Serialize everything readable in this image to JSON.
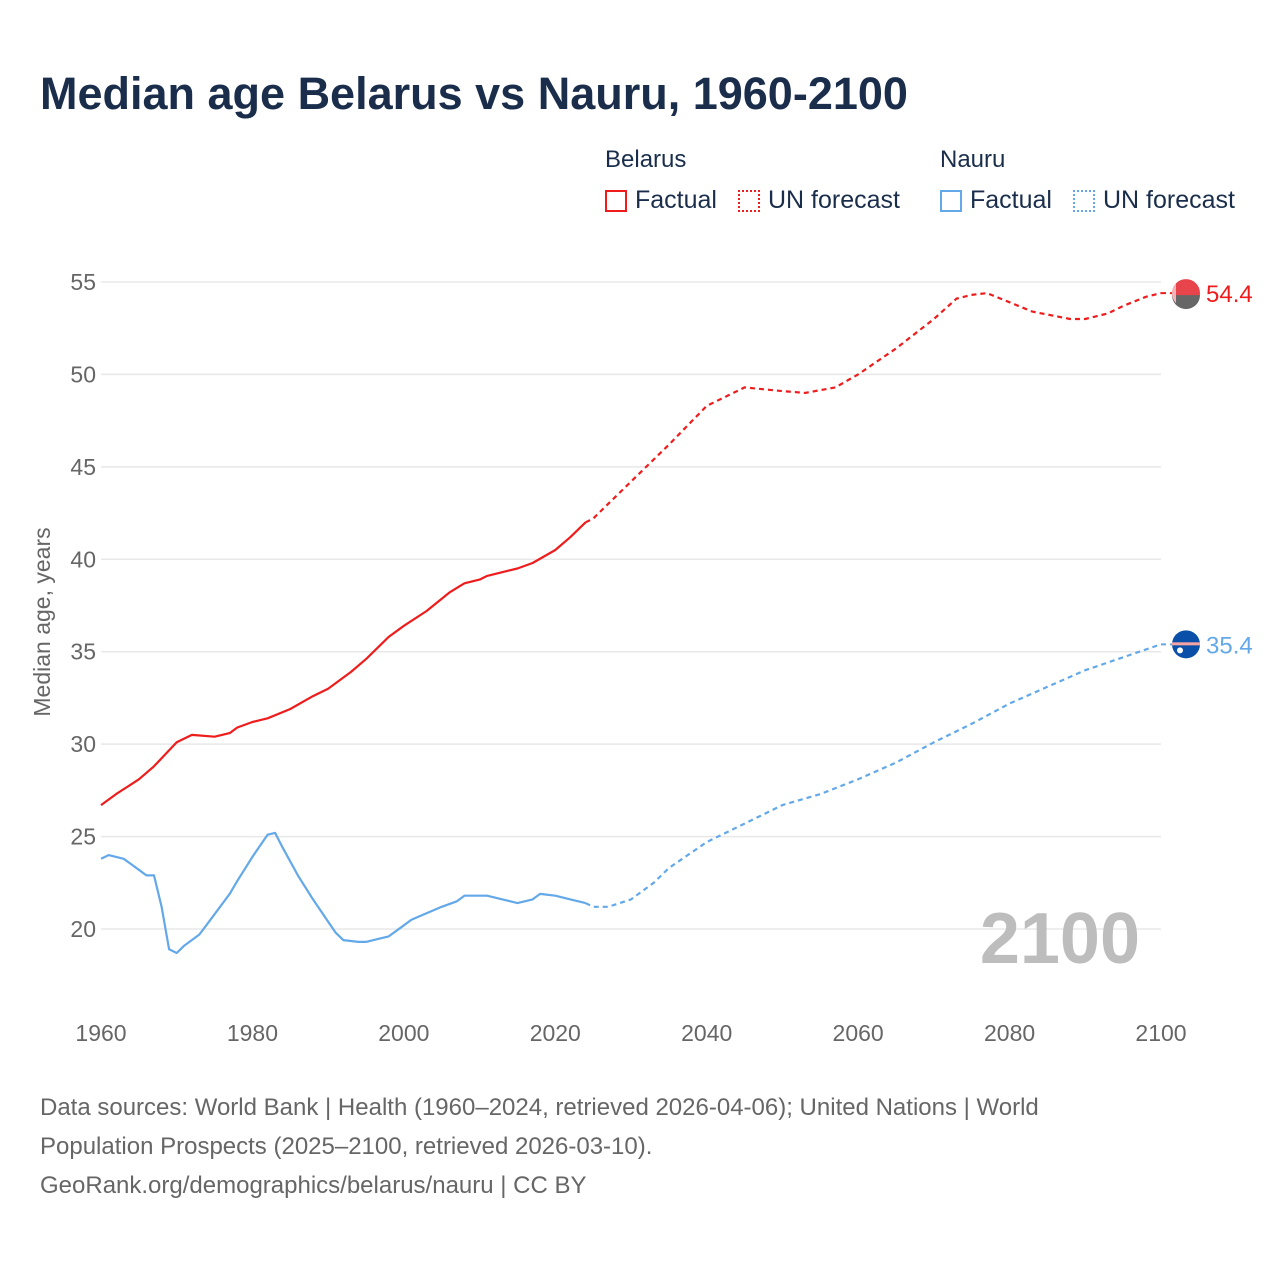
{
  "title": "Median age Belarus vs Nauru, 1960-2100",
  "legend": {
    "groups": [
      {
        "name": "Belarus",
        "factual": "Factual",
        "forecast": "UN forecast",
        "color": "#ee1c1c"
      },
      {
        "name": "Nauru",
        "factual": "Factual",
        "forecast": "UN forecast",
        "color": "#63a8e8"
      }
    ]
  },
  "year_watermark": "2100",
  "source": {
    "line1": "Data sources: World Bank | Health (1960–2024, retrieved 2026-04-06); United Nations | World",
    "line2": "Population Prospects (2025–2100, retrieved 2026-03-10).",
    "line3": "GeoRank.org/demographics/belarus/nauru | CC BY"
  },
  "chart_data": {
    "type": "line",
    "title": "Median age Belarus vs Nauru, 1960-2100",
    "ylabel": "Median age, years",
    "xlabel": "",
    "xlim": [
      1960,
      2100
    ],
    "ylim": [
      20,
      55
    ],
    "xticks": [
      1960,
      1980,
      2000,
      2020,
      2040,
      2060,
      2080,
      2100
    ],
    "yticks": [
      20,
      25,
      30,
      35,
      40,
      45,
      50,
      55
    ],
    "grid": true,
    "legend_position": "top-right",
    "series": [
      {
        "name": "Belarus",
        "kind": "Factual",
        "color": "#ee1c1c",
        "x": [
          1960,
          1962,
          1965,
          1967,
          1970,
          1972,
          1975,
          1977,
          1978,
          1980,
          1982,
          1985,
          1988,
          1990,
          1993,
          1995,
          1998,
          2000,
          2003,
          2006,
          2008,
          2010,
          2011,
          2015,
          2017,
          2020,
          2022,
          2024
        ],
        "y": [
          26.7,
          27.3,
          28.1,
          28.8,
          30.1,
          30.5,
          30.4,
          30.6,
          30.9,
          31.2,
          31.4,
          31.9,
          32.6,
          33.0,
          33.9,
          34.6,
          35.8,
          36.4,
          37.2,
          38.2,
          38.7,
          38.9,
          39.1,
          39.5,
          39.8,
          40.5,
          41.2,
          42.0
        ]
      },
      {
        "name": "Belarus",
        "kind": "UN forecast",
        "color": "#ee1c1c",
        "x": [
          2024,
          2025,
          2030,
          2035,
          2040,
          2045,
          2050,
          2053,
          2057,
          2060,
          2065,
          2070,
          2073,
          2075,
          2077,
          2080,
          2083,
          2088,
          2090,
          2093,
          2095,
          2098,
          2100
        ],
        "y": [
          42.0,
          42.2,
          44.2,
          46.2,
          48.3,
          49.3,
          49.1,
          49.0,
          49.3,
          50.0,
          51.4,
          53.0,
          54.1,
          54.3,
          54.4,
          53.9,
          53.4,
          53.0,
          53.0,
          53.3,
          53.7,
          54.2,
          54.4
        ]
      },
      {
        "name": "Nauru",
        "kind": "Factual",
        "color": "#63a8e8",
        "x": [
          1960,
          1961,
          1963,
          1965,
          1966,
          1967,
          1968,
          1969,
          1970,
          1971,
          1973,
          1975,
          1977,
          1978,
          1980,
          1981,
          1982,
          1983,
          1984,
          1986,
          1988,
          1990,
          1991,
          1992,
          1994,
          1995,
          1998,
          2000,
          2001,
          2005,
          2007,
          2008,
          2011,
          2015,
          2017,
          2018,
          2020,
          2022,
          2024
        ],
        "y": [
          23.8,
          24.0,
          23.8,
          23.2,
          22.9,
          22.9,
          21.2,
          18.9,
          18.7,
          19.1,
          19.7,
          20.8,
          21.9,
          22.6,
          23.9,
          24.5,
          25.1,
          25.2,
          24.4,
          22.9,
          21.6,
          20.4,
          19.8,
          19.4,
          19.3,
          19.3,
          19.6,
          20.2,
          20.5,
          21.2,
          21.5,
          21.8,
          21.8,
          21.4,
          21.6,
          21.9,
          21.8,
          21.6,
          21.4
        ]
      },
      {
        "name": "Nauru",
        "kind": "UN forecast",
        "color": "#63a8e8",
        "x": [
          2024,
          2025,
          2027,
          2030,
          2033,
          2035,
          2040,
          2045,
          2050,
          2055,
          2060,
          2065,
          2070,
          2075,
          2080,
          2085,
          2090,
          2095,
          2100
        ],
        "y": [
          21.4,
          21.2,
          21.2,
          21.6,
          22.5,
          23.3,
          24.7,
          25.7,
          26.7,
          27.3,
          28.1,
          29.0,
          30.1,
          31.1,
          32.2,
          33.1,
          34.0,
          34.7,
          35.4
        ]
      }
    ],
    "end_labels": [
      {
        "series": "Belarus",
        "value": "54.4",
        "y": 54.4,
        "color": "#ee1c1c"
      },
      {
        "series": "Nauru",
        "value": "35.4",
        "y": 35.4,
        "color": "#63a8e8"
      }
    ]
  }
}
